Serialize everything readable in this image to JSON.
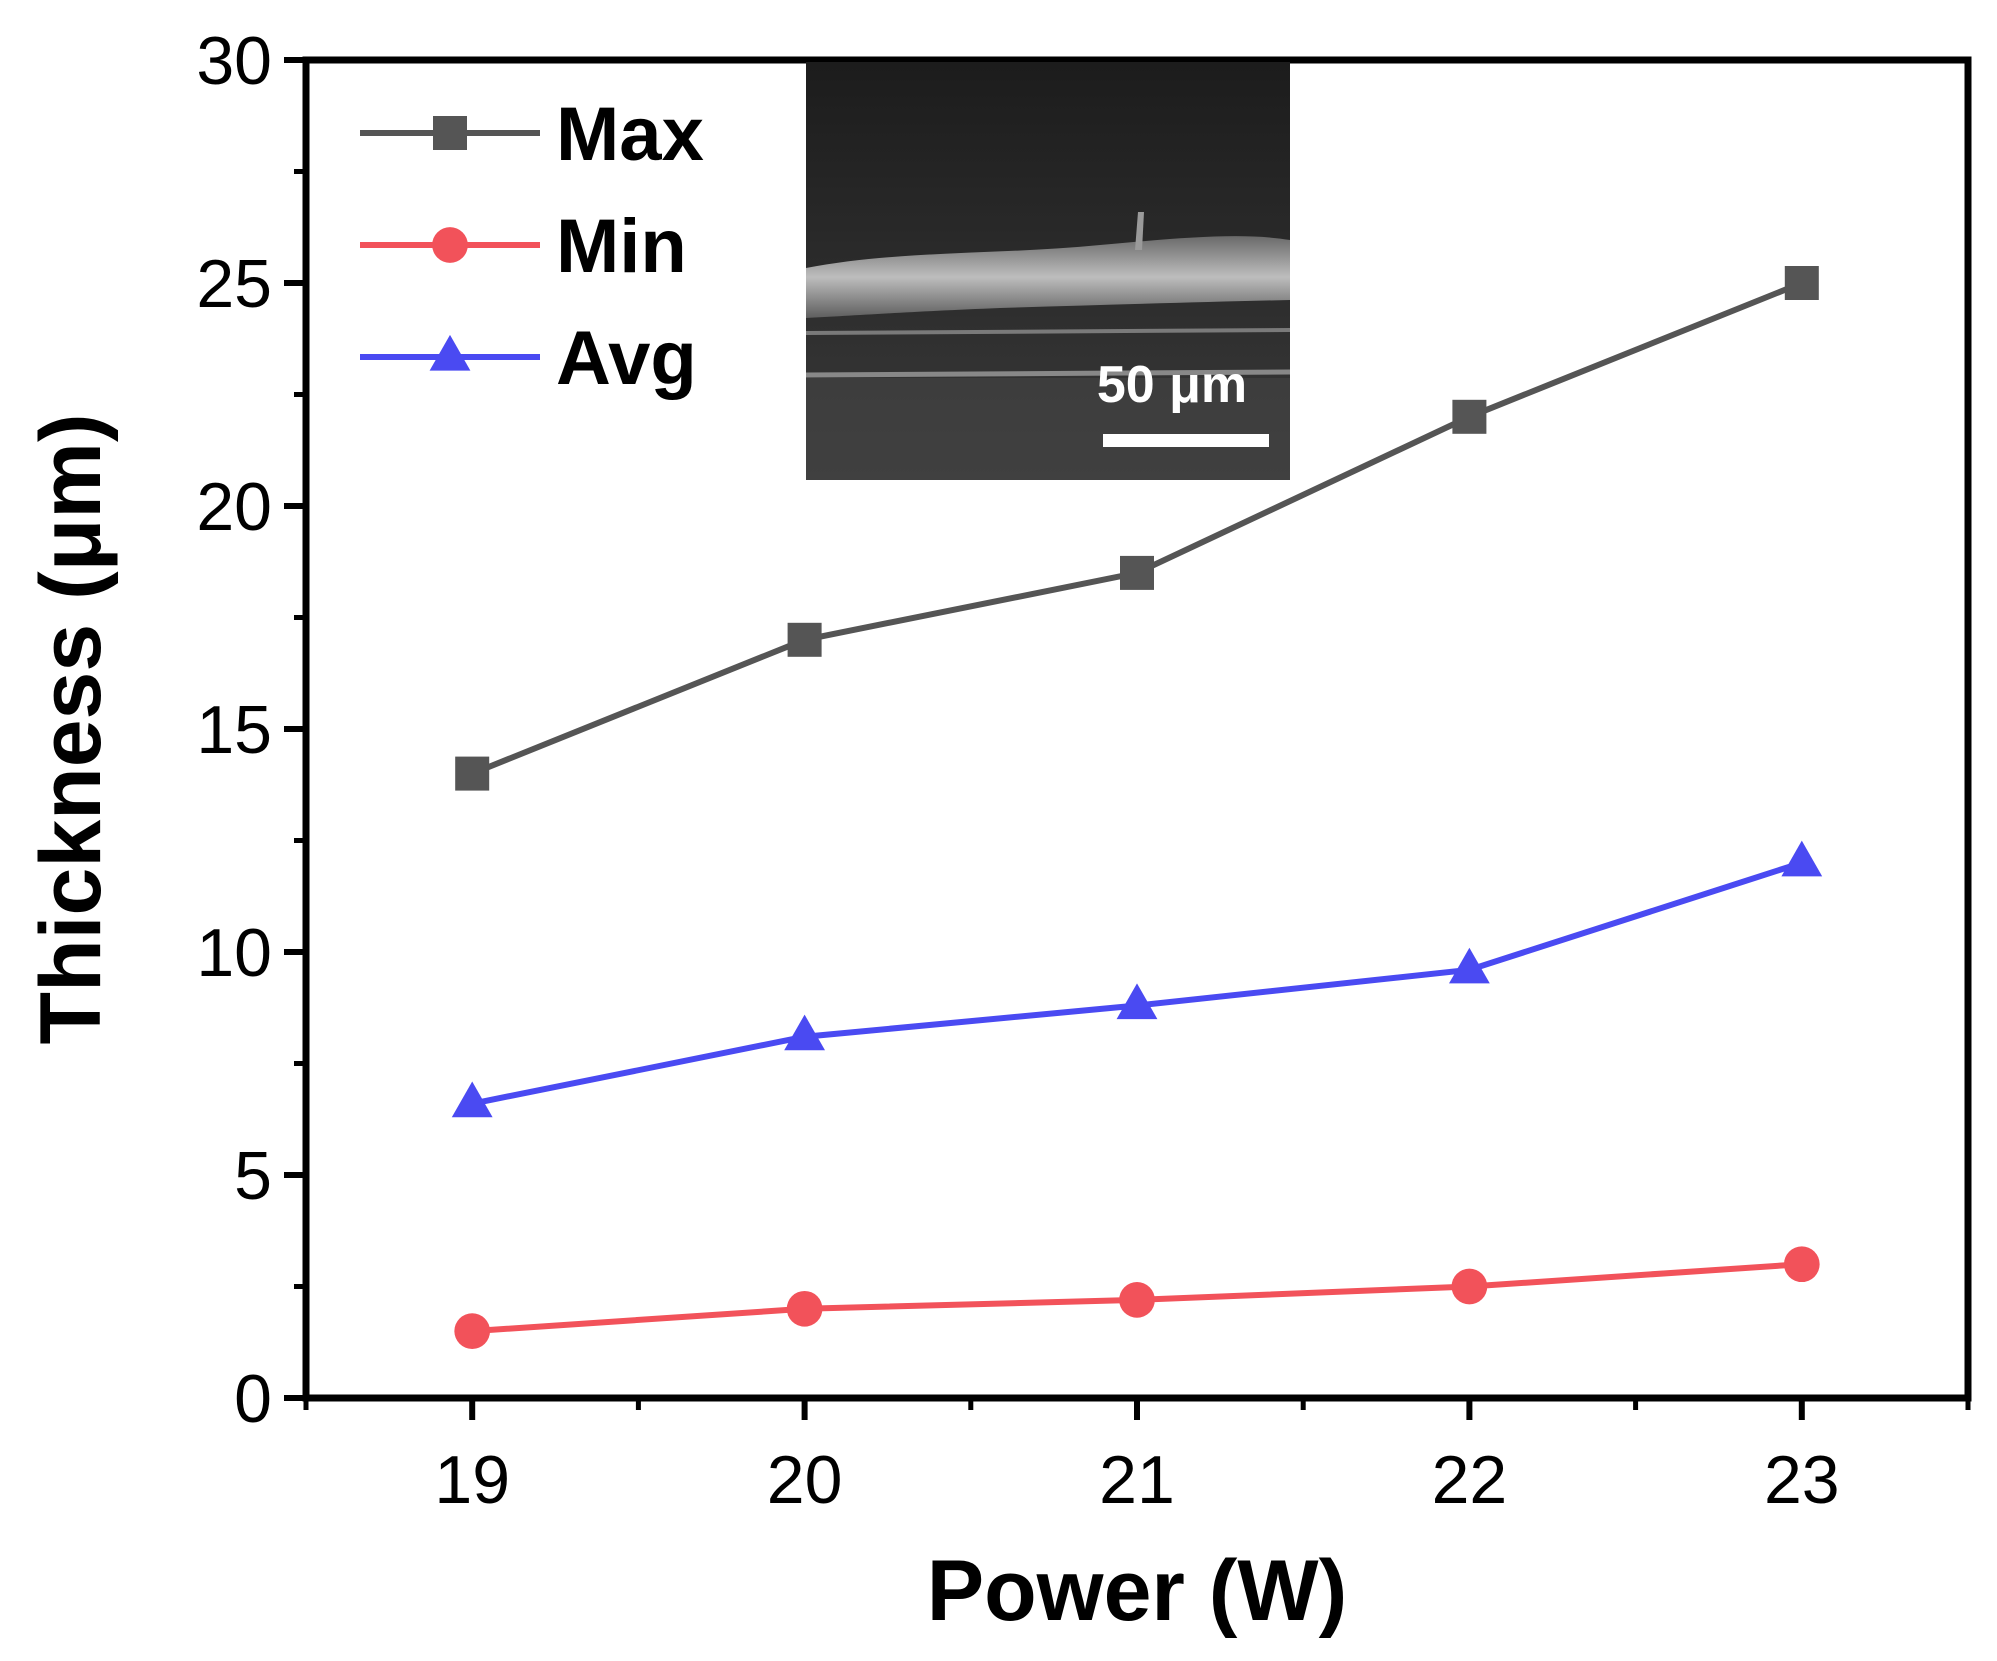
{
  "chart_data": {
    "type": "line",
    "title": "",
    "xlabel": "Power (W)",
    "ylabel": "Thickness (μm)",
    "x": [
      19,
      20,
      21,
      22,
      23
    ],
    "xlim": [
      18.5,
      23.5
    ],
    "ylim": [
      0,
      30
    ],
    "xticks": [
      19,
      20,
      21,
      22,
      23
    ],
    "yticks": [
      0,
      5,
      10,
      15,
      20,
      25,
      30
    ],
    "grid": false,
    "legend_position": "top-left",
    "series": [
      {
        "name": "Max",
        "values": [
          14,
          17,
          18.5,
          22,
          25
        ],
        "color": "#555555",
        "marker": "square"
      },
      {
        "name": "Min",
        "values": [
          1.5,
          2,
          2.2,
          2.5,
          3
        ],
        "color": "#f2525a",
        "marker": "circle"
      },
      {
        "name": "Avg",
        "values": [
          6.6,
          8.1,
          8.8,
          9.6,
          12
        ],
        "color": "#4a4af2",
        "marker": "triangle"
      }
    ],
    "inset": {
      "description_type": "SEM micrograph",
      "scale_bar_label": "50 μm"
    }
  }
}
